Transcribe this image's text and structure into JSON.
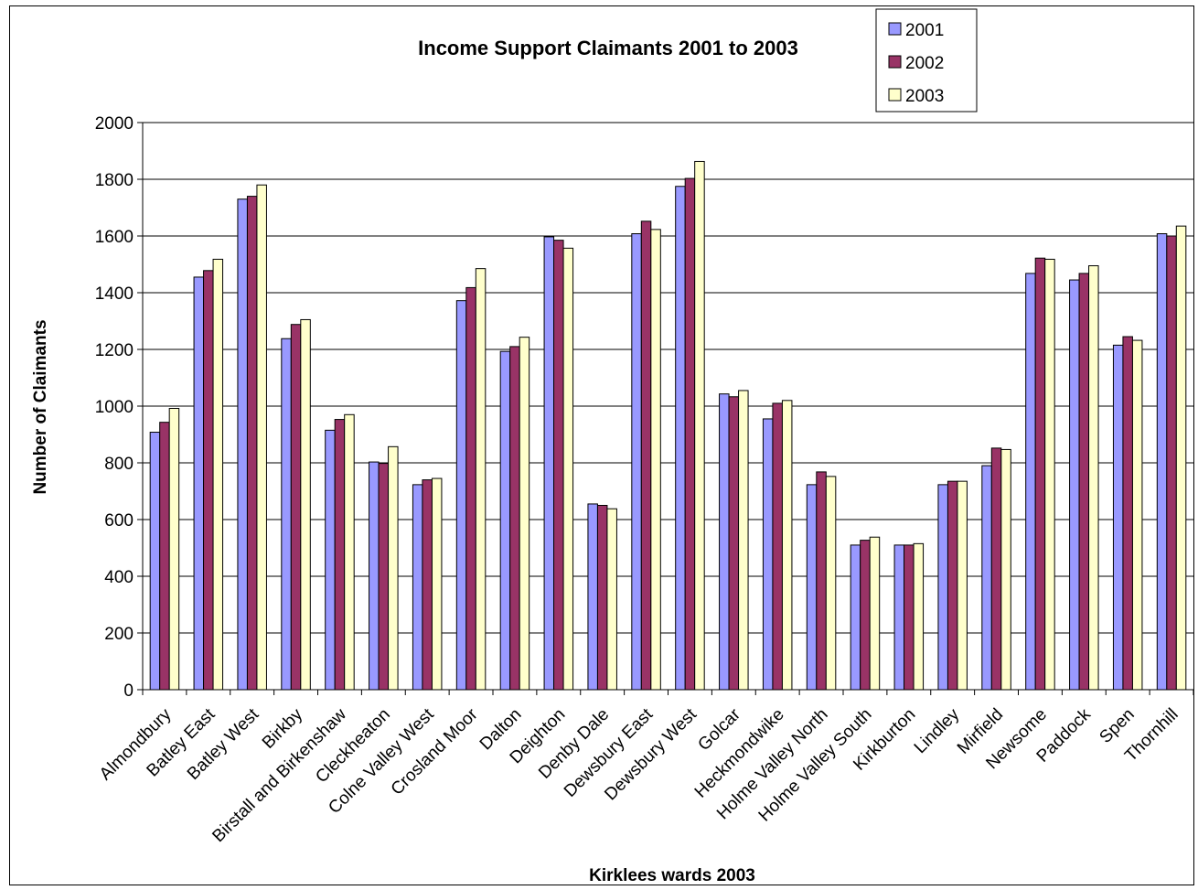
{
  "chart_data": {
    "type": "bar",
    "title": "Income Support Claimants 2001 to 2003",
    "xlabel": "Kirklees wards 2003",
    "ylabel": "Number of Claimants",
    "ylim": [
      0,
      2000
    ],
    "yticks": [
      0,
      200,
      400,
      600,
      800,
      1000,
      1200,
      1400,
      1600,
      1800,
      2000
    ],
    "grid": true,
    "legend_position": "top-right",
    "categories": [
      "Almondbury",
      "Batley East",
      "Batley West",
      "Birkby",
      "Birstall and Birkenshaw",
      "Cleckheaton",
      "Colne Valley West",
      "Crosland Moor",
      "Dalton",
      "Deighton",
      "Denby Dale",
      "Dewsbury East",
      "Dewsbury West",
      "Golcar",
      "Heckmondwike",
      "Holme Valley North",
      "Holme Valley South",
      "Kirkburton",
      "Lindley",
      "Mirfield",
      "Newsome",
      "Paddock",
      "Spen",
      "Thornhill"
    ],
    "series": [
      {
        "name": "2001",
        "color": "#9999ff",
        "values": [
          908,
          1455,
          1730,
          1238,
          915,
          803,
          723,
          1372,
          1193,
          1597,
          655,
          1608,
          1775,
          1043,
          955,
          723,
          510,
          510,
          723,
          790,
          1468,
          1445,
          1215,
          1608
        ]
      },
      {
        "name": "2002",
        "color": "#993366",
        "values": [
          943,
          1478,
          1740,
          1288,
          953,
          798,
          740,
          1418,
          1210,
          1585,
          650,
          1652,
          1803,
          1033,
          1010,
          768,
          527,
          510,
          735,
          852,
          1522,
          1468,
          1245,
          1600
        ]
      },
      {
        "name": "2003",
        "color": "#ffffcc",
        "values": [
          992,
          1518,
          1780,
          1305,
          970,
          857,
          745,
          1485,
          1243,
          1557,
          638,
          1623,
          1863,
          1055,
          1020,
          752,
          538,
          515,
          735,
          847,
          1518,
          1495,
          1232,
          1635
        ]
      }
    ]
  }
}
